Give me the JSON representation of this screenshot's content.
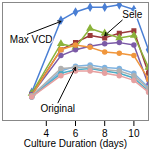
{
  "chart_data": {
    "type": "line",
    "x_label": "Culture Duration (days)",
    "x": [
      3,
      5,
      6,
      7,
      8,
      9,
      10,
      11
    ],
    "xlim": [
      1,
      11
    ],
    "xticks": [
      4,
      6,
      8,
      10
    ],
    "ylim": [
      0,
      100
    ],
    "tick_labels": "x",
    "grid": false,
    "series": [
      {
        "color": "#4a7fd4",
        "marker": "diamond",
        "values": [
          24,
          85,
          92,
          96,
          96,
          98,
          94,
          60
        ]
      },
      {
        "color": "#9b3a3a",
        "marker": "square",
        "values": [
          22,
          60,
          66,
          72,
          70,
          74,
          76,
          40
        ]
      },
      {
        "color": "#8bb33a",
        "marker": "triangle",
        "values": [
          23,
          65,
          62,
          78,
          74,
          70,
          72,
          45
        ]
      },
      {
        "color": "#7b5aa6",
        "marker": "circle",
        "values": [
          22,
          55,
          60,
          63,
          65,
          66,
          64,
          30
        ]
      },
      {
        "color": "#f0963c",
        "marker": "circle",
        "values": [
          21,
          60,
          64,
          62,
          58,
          57,
          55,
          35
        ]
      },
      {
        "color": "#7fb3e0",
        "marker": "circle",
        "values": [
          20,
          42,
          46,
          47,
          45,
          44,
          40,
          28
        ]
      },
      {
        "color": "#4bacc6",
        "marker": "circle",
        "values": [
          20,
          40,
          43,
          44,
          42,
          40,
          36,
          25
        ]
      },
      {
        "color": "#b0b0b0",
        "marker": "circle",
        "values": [
          21,
          44,
          45,
          45,
          43,
          42,
          38,
          27
        ]
      },
      {
        "color": "#e6a0a0",
        "marker": "circle",
        "values": [
          20,
          38,
          42,
          42,
          40,
          38,
          34,
          24
        ]
      }
    ],
    "annotations": [
      {
        "text": "Max VCD",
        "at": [
          1.5,
          68
        ],
        "points_to": [
          5,
          84
        ]
      },
      {
        "text": "Sele",
        "at": [
          9.2,
          90
        ],
        "points_to": [
          8,
          72
        ]
      },
      {
        "text": "Original",
        "at": [
          3.6,
          10
        ],
        "points_to": [
          6,
          45
        ]
      }
    ]
  }
}
